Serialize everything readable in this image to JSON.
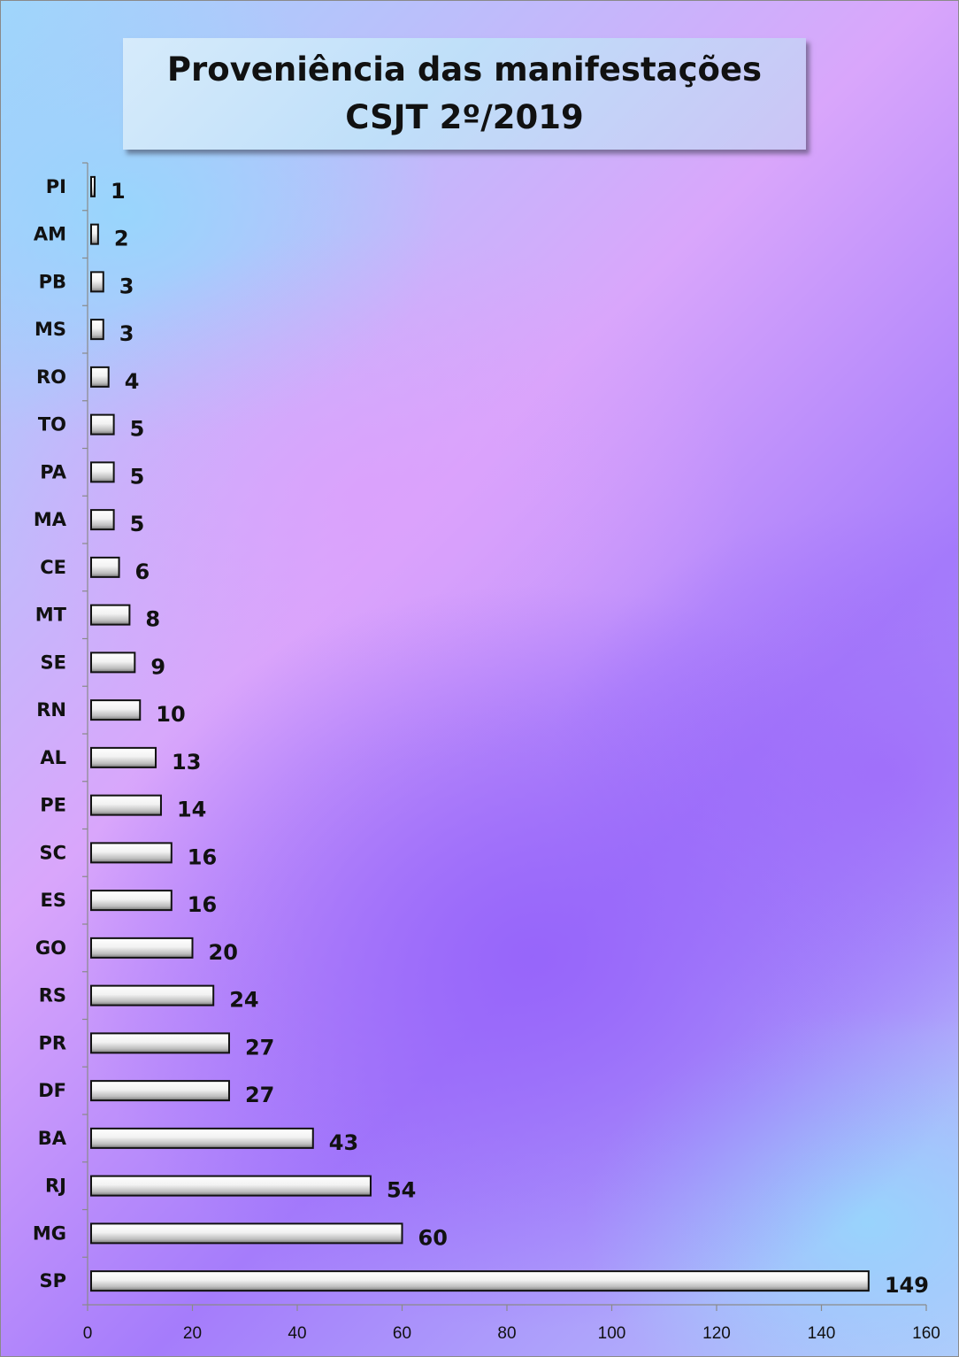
{
  "chart_data": {
    "type": "bar",
    "orientation": "horizontal",
    "title": "Proveniência das manifestações",
    "subtitle": "CSJT 2º/2019",
    "categories": [
      "PI",
      "AM",
      "PB",
      "MS",
      "RO",
      "TO",
      "PA",
      "MA",
      "CE",
      "MT",
      "SE",
      "RN",
      "AL",
      "PE",
      "SC",
      "ES",
      "GO",
      "RS",
      "PR",
      "DF",
      "BA",
      "RJ",
      "MG",
      "SP"
    ],
    "values": [
      1,
      2,
      3,
      3,
      4,
      5,
      5,
      5,
      6,
      8,
      9,
      10,
      13,
      14,
      16,
      16,
      20,
      24,
      27,
      27,
      43,
      54,
      60,
      149
    ],
    "xlim": [
      0,
      160
    ],
    "xticks": [
      0,
      20,
      40,
      60,
      80,
      100,
      120,
      140,
      160
    ],
    "grid": false,
    "legend": "none",
    "bar_color": "#e6e6e6"
  }
}
